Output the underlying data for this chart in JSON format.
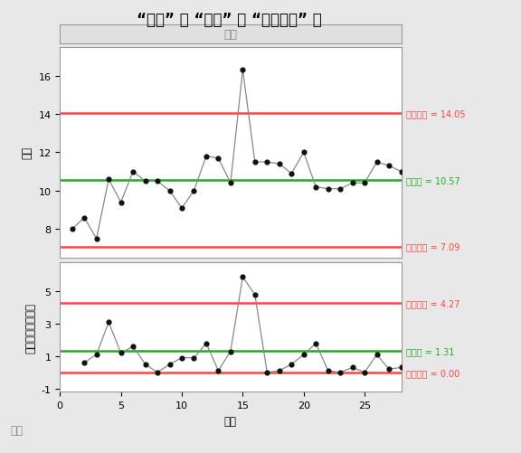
{
  "title": "“酸性” 的 “单值” 和 “移动极差” 图",
  "stage_label": "阶段",
  "xlabel": "子组",
  "ylabel_top": "酸性",
  "ylabel_bottom": "移动极差（酸性）",
  "tag_label": "标签",
  "ind_values": [
    8.0,
    8.6,
    7.5,
    10.6,
    9.4,
    11.0,
    10.5,
    10.5,
    10.0,
    9.1,
    10.0,
    11.8,
    11.7,
    10.4,
    16.3,
    11.5,
    11.5,
    11.4,
    10.9,
    12.0,
    10.2,
    10.1,
    10.1,
    10.4,
    10.4,
    11.5,
    11.3,
    11.0
  ],
  "mr_values": [
    null,
    0.6,
    1.1,
    3.1,
    1.2,
    1.6,
    0.5,
    0.0,
    0.5,
    0.9,
    0.9,
    1.8,
    0.1,
    1.3,
    5.9,
    4.8,
    0.0,
    0.1,
    0.5,
    1.1,
    1.8,
    0.1,
    0.0,
    0.3,
    0.0,
    1.1,
    0.2,
    0.3
  ],
  "x_values": [
    1,
    2,
    3,
    4,
    5,
    6,
    7,
    8,
    9,
    10,
    11,
    12,
    13,
    14,
    15,
    16,
    17,
    18,
    19,
    20,
    21,
    22,
    23,
    24,
    25,
    26,
    27,
    28
  ],
  "ind_ucl": 14.05,
  "ind_cl": 10.57,
  "ind_lcl": 7.09,
  "mr_ucl": 4.27,
  "mr_cl": 1.31,
  "mr_lcl": 0.0,
  "ucl_color": "#FF4444",
  "cl_color": "#22AA22",
  "lcl_color": "#FF4444",
  "line_color": "#888888",
  "dot_color": "#111111",
  "bg_color": "#E8E8E8",
  "plot_bg_color": "#FFFFFF",
  "stage_bg_color": "#E0E0E0",
  "title_fontsize": 12,
  "label_fontsize": 8.5,
  "tick_fontsize": 8,
  "annotation_fontsize": 7,
  "ind_ylim": [
    6.5,
    17.5
  ],
  "mr_ylim": [
    -1.2,
    6.8
  ],
  "ind_yticks": [
    8,
    10,
    12,
    14,
    16
  ],
  "mr_yticks": [
    -1,
    1,
    3,
    5
  ],
  "xticks": [
    0,
    5,
    10,
    15,
    20,
    25
  ]
}
